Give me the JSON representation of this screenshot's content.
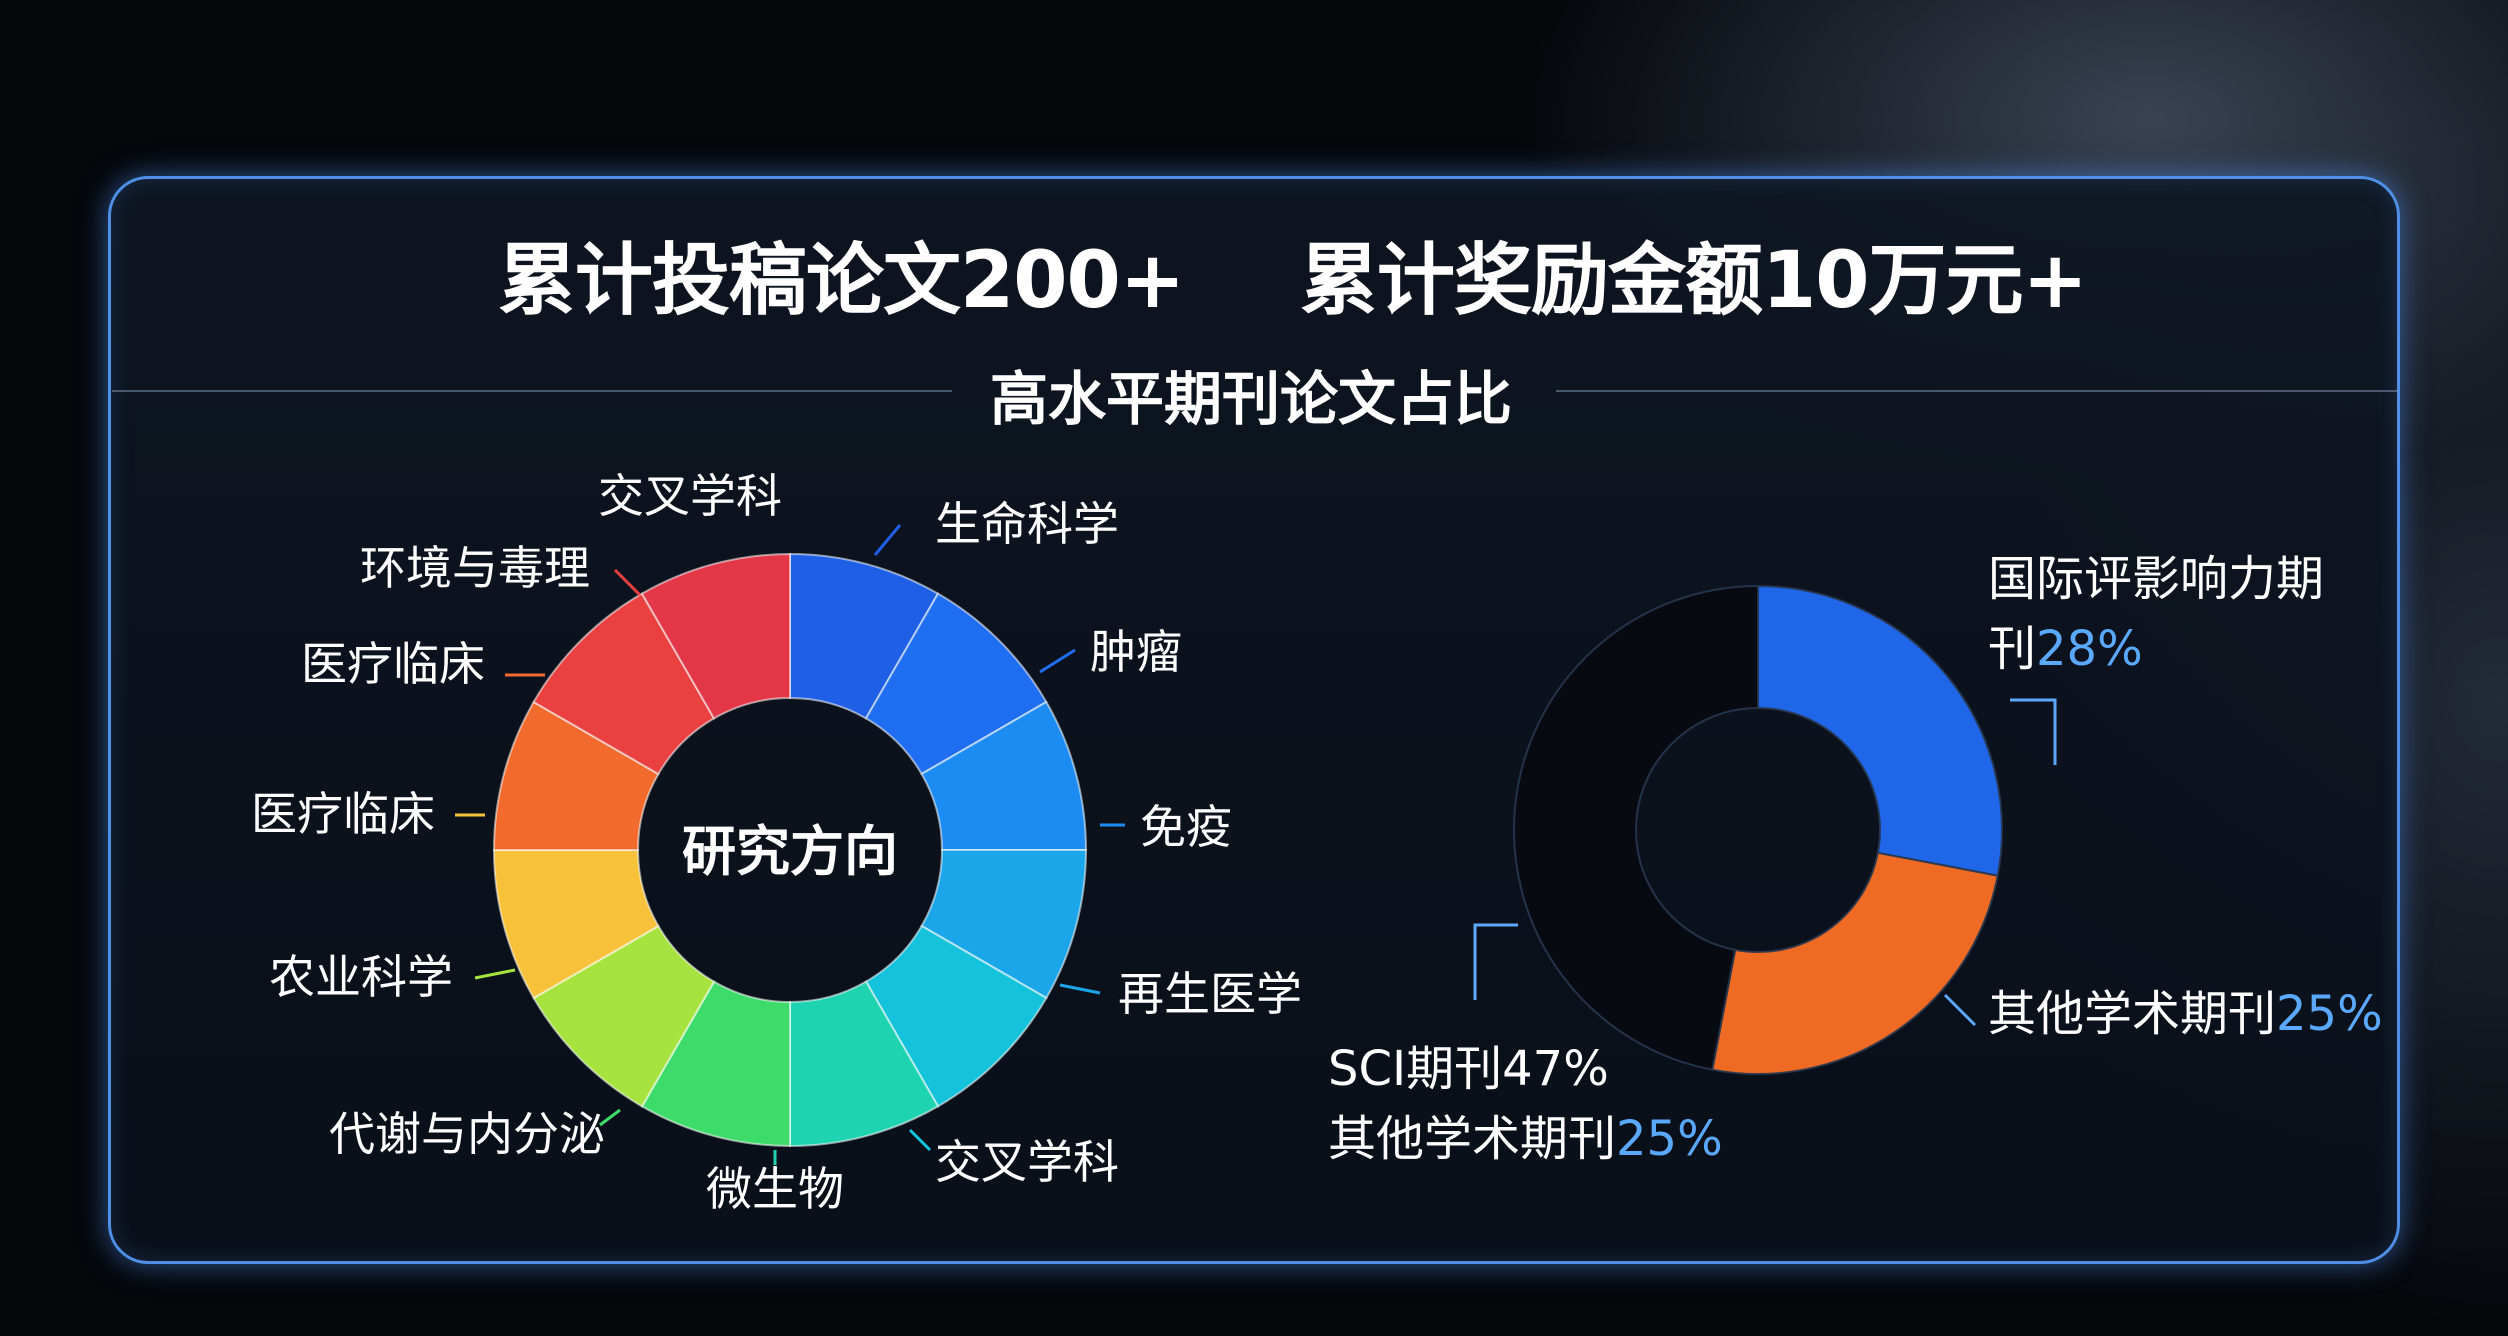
{
  "header": {
    "stat_papers": "累计投稿论文200+",
    "stat_awards": "累计奖励金额10万元+",
    "section_title": "高水平期刊论文占比"
  },
  "colors": {
    "panel_border": "#4f8fe6",
    "highlight_blue": "#5aa9ff",
    "background": "#05070b"
  },
  "chart_data": [
    {
      "type": "pie",
      "variant": "donut",
      "title": "",
      "center_label": "研究方向",
      "direction": "clockwise from top",
      "slices": [
        {
          "label": "生命科学",
          "value": 1,
          "color": "#1f5fe6"
        },
        {
          "label": "肿瘤",
          "value": 1,
          "color": "#1f6df0"
        },
        {
          "label": "免疫",
          "value": 1,
          "color": "#1c8cf2"
        },
        {
          "label": "再生医学",
          "value": 1,
          "color": "#1ba6ea"
        },
        {
          "label": "交叉学科",
          "value": 1,
          "color": "#14c2dc"
        },
        {
          "label": "微生物",
          "value": 1,
          "color": "#1ed3b0"
        },
        {
          "label": "代谢与内分泌",
          "value": 1,
          "color": "#3ddc6a"
        },
        {
          "label": "农业科学",
          "value": 1,
          "color": "#a6e33e"
        },
        {
          "label": "医疗临床",
          "value": 1,
          "color": "#f7c23a"
        },
        {
          "label": "医疗临床",
          "value": 1,
          "color": "#f26a2c"
        },
        {
          "label": "环境与毒理",
          "value": 1,
          "color": "#ea4040"
        },
        {
          "label": "交叉学科",
          "value": 1,
          "color": "#e33748"
        }
      ]
    },
    {
      "type": "pie",
      "variant": "donut",
      "title": "",
      "direction": "clockwise from top",
      "slices": [
        {
          "label": "国际评影响力期刊",
          "value": 28,
          "color": "#1f66e8"
        },
        {
          "label": "其他学术期刊",
          "value": 25,
          "color": "#ef6b24"
        },
        {
          "label": "SCI期刊",
          "value": 47,
          "color": "#070a10"
        }
      ],
      "annotations": [
        {
          "text": "国际评影响力期",
          "pct": ""
        },
        {
          "text": "刊",
          "pct": "28%"
        },
        {
          "text": "其他学术期刊",
          "pct": "25%"
        },
        {
          "text": "SCI期刊47%",
          "pct": ""
        },
        {
          "text": "其他学术期刊",
          "pct": "25%"
        }
      ]
    }
  ]
}
